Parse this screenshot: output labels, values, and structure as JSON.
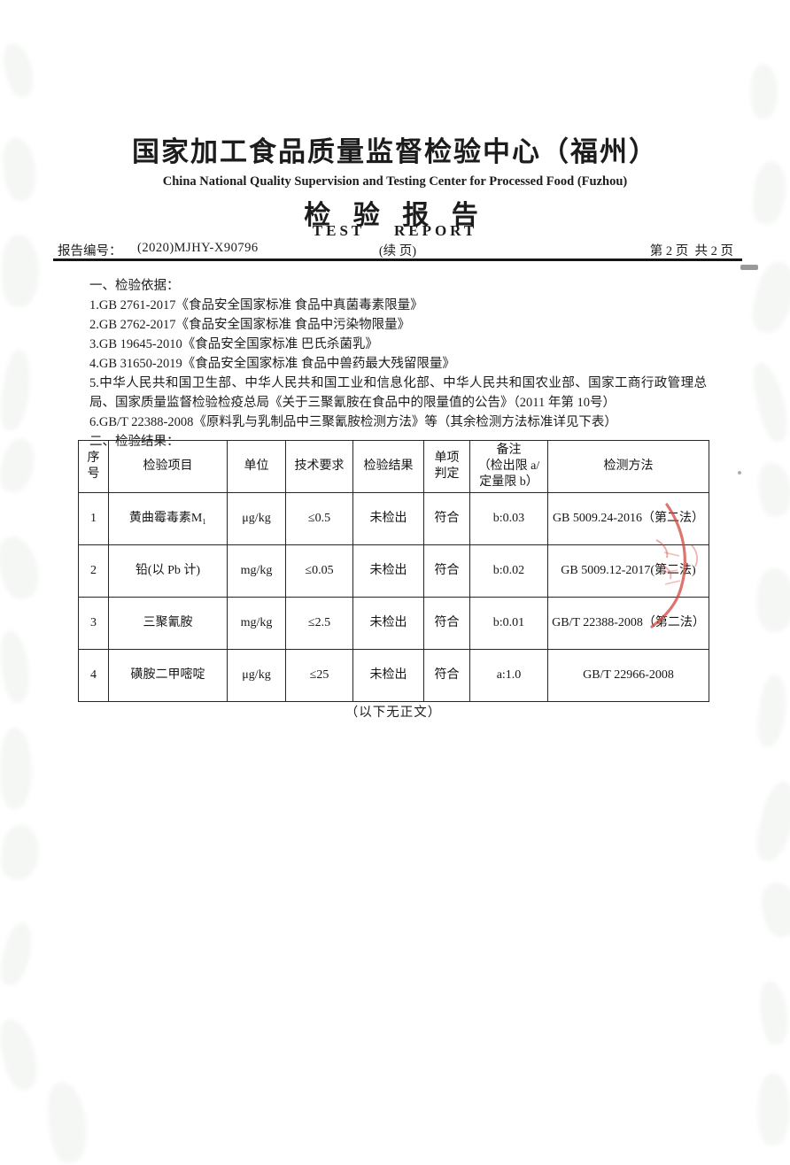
{
  "header": {
    "org_cn": "国家加工食品质量监督检验中心（福州）",
    "org_en": "China National Quality Supervision and Testing Center for Processed Food (Fuzhou)",
    "report_title_cn": "检 验 报 告",
    "report_title_en": "TEST    REPORT",
    "report_no_label": "报告编号：",
    "report_no": "(2020)MJHY-X90796",
    "continuation_note": "(续 页)",
    "page_info": "第 2 页  共 2 页"
  },
  "body": {
    "section1_title": "一、检验依据：",
    "basis_items": [
      "1.GB 2761-2017《食品安全国家标准 食品中真菌毒素限量》",
      "2.GB 2762-2017《食品安全国家标准 食品中污染物限量》",
      "3.GB 19645-2010《食品安全国家标准 巴氏杀菌乳》",
      "4.GB 31650-2019《食品安全国家标准 食品中兽药最大残留限量》",
      "5.中华人民共和国卫生部、中华人民共和国工业和信息化部、中华人民共和国农业部、国家工商行政管理总局、国家质量监督检验检疫总局《关于三聚氰胺在食品中的限量值的公告》（2011 年第 10号）",
      "6.GB/T 22388-2008《原料乳与乳制品中三聚氰胺检测方法》等（其余检测方法标准详见下表）"
    ],
    "section2_title": "二、检验结果："
  },
  "table": {
    "headers": {
      "no": "序\n号",
      "item": "检验项目",
      "unit": "单位",
      "requirement": "技术要求",
      "result": "检验结果",
      "judgment": "单项\n判定",
      "remark": "备注\n（检出限 a/\n定量限 b）",
      "method": "检测方法"
    },
    "rows": [
      {
        "no": "1",
        "item": "黄曲霉毒素M₁",
        "unit": "μg/kg",
        "req": "≤0.5",
        "result": "未检出",
        "judgment": "符合",
        "remark": "b:0.03",
        "method": "GB 5009.24-2016（第二法）"
      },
      {
        "no": "2",
        "item": "铅(以 Pb 计)",
        "unit": "mg/kg",
        "req": "≤0.05",
        "result": "未检出",
        "judgment": "符合",
        "remark": "b:0.02",
        "method": "GB 5009.12-2017(第二法)"
      },
      {
        "no": "3",
        "item": "三聚氰胺",
        "unit": "mg/kg",
        "req": "≤2.5",
        "result": "未检出",
        "judgment": "符合",
        "remark": "b:0.01",
        "method": "GB/T 22388-2008（第二法）"
      },
      {
        "no": "4",
        "item": "磺胺二甲嘧啶",
        "unit": "μg/kg",
        "req": "≤25",
        "result": "未检出",
        "judgment": "符合",
        "remark": "a:1.0",
        "method": "GB/T 22966-2008"
      }
    ]
  },
  "footer": {
    "end_note": "（以下无正文）"
  },
  "stamp": {
    "color": "#d2453c"
  }
}
